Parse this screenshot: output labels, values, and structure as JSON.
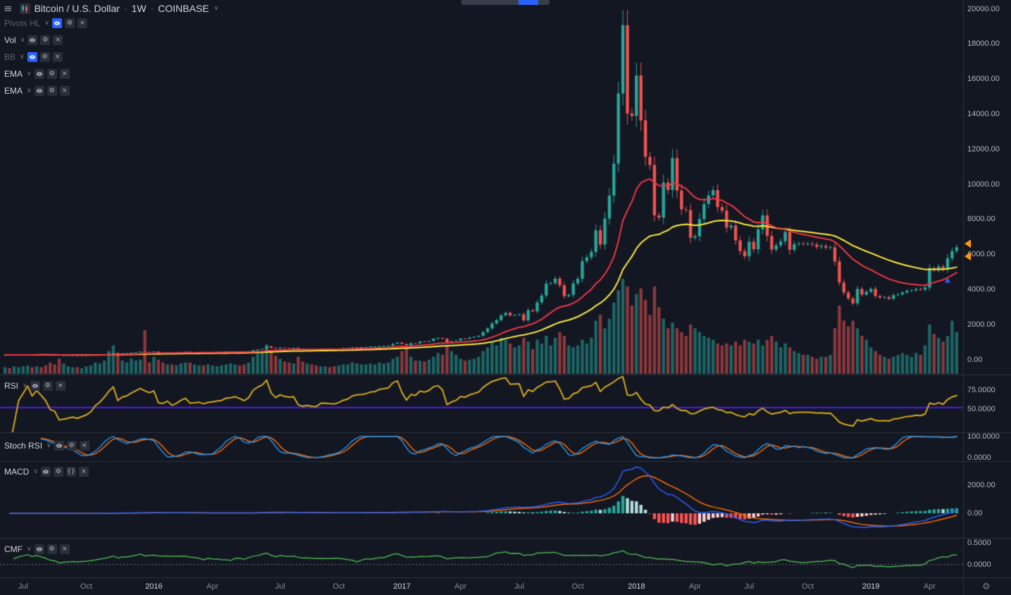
{
  "colors": {
    "bg": "#131722",
    "up": "#26a69a",
    "down": "#ef5350",
    "vol_up": "rgba(38,166,154,0.55)",
    "vol_down": "rgba(239,83,80,0.55)",
    "zero_dash": "#787b86",
    "text": "#d1d4dc",
    "text_dim": "#787b86",
    "text_disabled": "#5d606b",
    "separator": "#2a2e39",
    "icon_active": "#2962ff"
  },
  "icon_glyphs": {
    "menu": "≡",
    "gear": "⚙",
    "close": "×",
    "braces": "{}",
    "chevron": "∨",
    "corner_gear": "⚙"
  },
  "header": {
    "symbol": "Bitcoin / U.S. Dollar",
    "separator": "·",
    "interval": "1W",
    "exchange": "COINBASE"
  },
  "main_legend": [
    {
      "label": "Pivots HL",
      "disabled": true,
      "eye_active": true,
      "icons": [
        "eye",
        "gear",
        "close"
      ]
    },
    {
      "label": "Vol",
      "disabled": false,
      "eye_active": false,
      "icons": [
        "eye",
        "gear",
        "close"
      ]
    },
    {
      "label": "BB",
      "disabled": true,
      "eye_active": true,
      "icons": [
        "eye",
        "gear",
        "close"
      ]
    },
    {
      "label": "EMA",
      "disabled": false,
      "eye_active": false,
      "icons": [
        "eye",
        "gear",
        "close"
      ]
    },
    {
      "label": "EMA",
      "disabled": false,
      "eye_active": false,
      "icons": [
        "eye",
        "gear",
        "close"
      ]
    }
  ],
  "pane_legends": [
    {
      "pane": "rsi",
      "label": "RSI",
      "disabled": false,
      "eye_active": false,
      "icons": [
        "eye",
        "gear",
        "close"
      ]
    },
    {
      "pane": "stoch",
      "label": "Stoch RSI",
      "disabled": false,
      "eye_active": false,
      "icons": [
        "eye",
        "gear",
        "close"
      ]
    },
    {
      "pane": "macd",
      "label": "MACD",
      "disabled": false,
      "eye_active": false,
      "icons": [
        "eye",
        "gear",
        "braces",
        "close"
      ]
    },
    {
      "pane": "cmf",
      "label": "CMF",
      "disabled": false,
      "eye_active": false,
      "icons": [
        "eye",
        "gear",
        "close"
      ]
    }
  ],
  "chart_data": {
    "type": "candlestick",
    "symbol": "Bitcoin / U.S. Dollar",
    "exchange": "COINBASE",
    "interval": "1W",
    "weeks": 212,
    "price_range": [
      0,
      20480
    ],
    "closes": [
      262,
      255,
      258,
      266,
      272,
      284,
      277,
      289,
      284,
      277,
      261,
      257,
      229,
      231,
      233,
      236,
      231,
      235,
      239,
      246,
      263,
      275,
      296,
      331,
      373,
      322,
      351,
      361,
      389,
      416,
      448,
      437,
      429,
      449,
      387,
      383,
      403,
      377,
      393,
      421,
      439,
      411,
      413,
      417,
      409,
      419,
      423,
      429,
      433,
      449,
      453,
      459,
      453,
      445,
      463,
      529,
      573,
      609,
      755,
      665,
      625,
      679,
      663,
      657,
      663,
      589,
      573,
      583,
      575,
      573,
      607,
      609,
      605,
      603,
      617,
      639,
      651,
      687,
      699,
      703,
      713,
      733,
      737,
      769,
      779,
      791,
      897,
      963,
      887,
      821,
      925,
      917,
      1019,
      1009,
      1053,
      1179,
      1223,
      1179,
      973,
      1039,
      1079,
      1187,
      1179,
      1249,
      1295,
      1349,
      1559,
      1773,
      2053,
      2245,
      2519,
      2659,
      2509,
      2539,
      2573,
      2229,
      2809,
      2745,
      3253,
      3649,
      4329,
      4353,
      4613,
      4229,
      3607,
      3683,
      4339,
      4603,
      5603,
      5829,
      6139,
      7373,
      6549,
      8039,
      9343,
      11169,
      15169,
      19069,
      14029,
      13889,
      16199,
      13639,
      11559,
      11089,
      8219,
      8089,
      10089,
      9669,
      11489,
      9629,
      8559,
      8519,
      6939,
      7029,
      8009,
      8869,
      9359,
      9659,
      8689,
      8489,
      7519,
      7639,
      6789,
      6179,
      5879,
      6719,
      6279,
      7419,
      8219,
      7049,
      6269,
      6509,
      6739,
      7269,
      6249,
      6579,
      6619,
      6599,
      6599,
      6559,
      6419,
      6479,
      6379,
      6399,
      5589,
      4389,
      3819,
      3479,
      3199,
      4019,
      3699,
      3859,
      4029,
      3619,
      3529,
      3559,
      3459,
      3669,
      3709,
      3819,
      3919,
      3939,
      4019,
      3979,
      4099,
      5209,
      5089,
      5299,
      5149,
      5769,
      6179,
      6399
    ],
    "volumes": [
      7,
      6,
      8,
      7,
      8,
      9,
      7,
      8,
      7,
      9,
      12,
      10,
      16,
      11,
      8,
      7,
      7,
      6,
      8,
      9,
      12,
      11,
      14,
      24,
      30,
      20,
      14,
      12,
      16,
      14,
      15,
      46,
      12,
      18,
      15,
      12,
      10,
      10,
      9,
      11,
      12,
      12,
      10,
      9,
      9,
      10,
      9,
      8,
      9,
      10,
      11,
      10,
      9,
      10,
      12,
      18,
      22,
      24,
      31,
      25,
      19,
      16,
      13,
      12,
      11,
      18,
      13,
      11,
      10,
      9,
      8,
      8,
      7,
      8,
      9,
      10,
      10,
      12,
      11,
      10,
      10,
      11,
      10,
      12,
      11,
      12,
      16,
      18,
      24,
      28,
      18,
      14,
      14,
      13,
      15,
      18,
      22,
      20,
      30,
      24,
      20,
      16,
      14,
      15,
      16,
      18,
      24,
      28,
      34,
      30,
      38,
      36,
      32,
      28,
      30,
      38,
      34,
      26,
      36,
      32,
      40,
      30,
      38,
      44,
      40,
      30,
      28,
      30,
      36,
      32,
      38,
      56,
      62,
      48,
      58,
      75,
      88,
      100,
      92,
      72,
      84,
      90,
      78,
      62,
      92,
      70,
      58,
      48,
      54,
      48,
      44,
      40,
      52,
      48,
      44,
      40,
      38,
      36,
      32,
      30,
      32,
      30,
      34,
      30,
      36,
      34,
      32,
      36,
      30,
      36,
      40,
      34,
      28,
      32,
      28,
      24,
      22,
      20,
      20,
      18,
      16,
      18,
      18,
      20,
      48,
      72,
      56,
      50,
      56,
      48,
      40,
      36,
      28,
      24,
      20,
      18,
      16,
      18,
      20,
      22,
      20,
      18,
      22,
      20,
      30,
      52,
      42,
      38,
      34,
      40,
      56,
      44
    ],
    "overlays": {
      "ema_fast": {
        "period": 20,
        "color": "#f23645"
      },
      "ema_slow": {
        "period": 45,
        "color": "#ffeb3b"
      }
    },
    "panes": {
      "rsi": {
        "period": 14,
        "color": "#d4a91f",
        "range": [
          22,
          92
        ],
        "hline": {
          "value": 52,
          "color": "#4c1fe6"
        },
        "axis": [
          {
            "text": "75.0000",
            "value": 75
          },
          {
            "text": "50.0000",
            "value": 50
          }
        ]
      },
      "stoch": {
        "range": [
          -6,
          106
        ],
        "k_color": "#2196f3",
        "d_color": "#ff6d00",
        "axis": [
          {
            "text": "100.0000",
            "value": 100
          },
          {
            "text": "0.0000",
            "value": 0
          }
        ]
      },
      "macd": {
        "fast": 12,
        "slow": 26,
        "signal": 9,
        "range": [
          -1600,
          3500
        ],
        "line_color": "#2962ff",
        "signal_color": "#ff6d00",
        "hist_colors": [
          "#26a69a",
          "#b2dfdb",
          "#ff5252",
          "#ffcdd2"
        ],
        "axis": [
          {
            "text": "2000.00",
            "value": 2000
          },
          {
            "text": "0.00",
            "value": 0
          }
        ]
      },
      "cmf": {
        "period": 20,
        "color": "#4caf50",
        "range": [
          -0.25,
          0.55
        ],
        "axis": [
          {
            "text": "0.5000",
            "value": 0.5
          },
          {
            "text": "0.0000",
            "value": 0
          }
        ]
      }
    },
    "price_axis": [
      {
        "text": "20000.00",
        "value": 20000
      },
      {
        "text": "18000.00",
        "value": 18000
      },
      {
        "text": "16000.00",
        "value": 16000
      },
      {
        "text": "14000.00",
        "value": 14000
      },
      {
        "text": "12000.00",
        "value": 12000
      },
      {
        "text": "10000.00",
        "value": 10000
      },
      {
        "text": "8000.00",
        "value": 8000
      },
      {
        "text": "6000.00",
        "value": 6000
      },
      {
        "text": "4000.00",
        "value": 4000
      },
      {
        "text": "2000.00",
        "value": 2000
      },
      {
        "text": "0.00",
        "value": 0
      }
    ],
    "time_axis": [
      {
        "text": "Jul",
        "index": 4,
        "year": false
      },
      {
        "text": "Oct",
        "index": 18,
        "year": false
      },
      {
        "text": "2016",
        "index": 33,
        "year": true
      },
      {
        "text": "Apr",
        "index": 46,
        "year": false
      },
      {
        "text": "Jul",
        "index": 61,
        "year": false
      },
      {
        "text": "Oct",
        "index": 74,
        "year": false
      },
      {
        "text": "2017",
        "index": 88,
        "year": true
      },
      {
        "text": "Apr",
        "index": 101,
        "year": false
      },
      {
        "text": "Jul",
        "index": 114,
        "year": false
      },
      {
        "text": "Oct",
        "index": 127,
        "year": false
      },
      {
        "text": "2018",
        "index": 140,
        "year": true
      },
      {
        "text": "Apr",
        "index": 153,
        "year": false
      },
      {
        "text": "Jul",
        "index": 165,
        "year": false
      },
      {
        "text": "Oct",
        "index": 178,
        "year": false
      },
      {
        "text": "2019",
        "index": 192,
        "year": true
      },
      {
        "text": "Apr",
        "index": 205,
        "year": false
      }
    ],
    "axis_markers": [
      {
        "price": 6600,
        "color": "#ff9800"
      },
      {
        "price": 5900,
        "color": "#ff9800"
      }
    ],
    "chart_markers": [
      {
        "index": 209,
        "type": "arrow-up",
        "color": "#2962ff"
      }
    ]
  }
}
